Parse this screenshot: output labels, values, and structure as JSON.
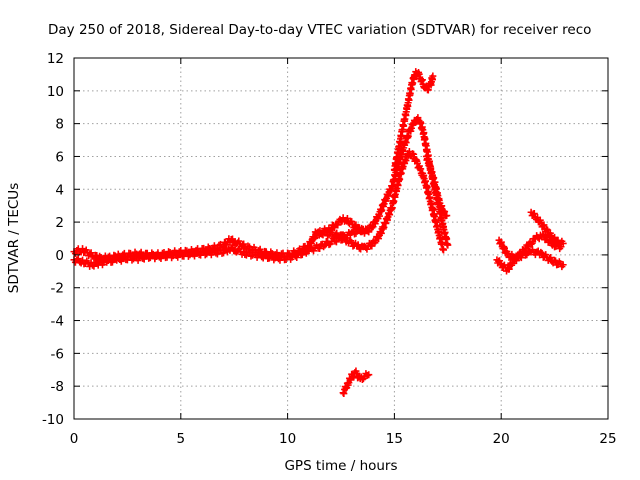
{
  "colors": {
    "series": "#ff0000",
    "grid": "#a0a0a0",
    "frame": "#000000"
  },
  "chart_data": {
    "type": "scatter",
    "title": "Day 250 of 2018, Sidereal Day-to-day VTEC variation (SDTVAR) for receiver reco",
    "xlabel": "GPS time / hours",
    "ylabel": "SDTVAR / TECUs",
    "xlim": [
      0,
      25
    ],
    "ylim": [
      -10,
      12
    ],
    "xticks": [
      0,
      5,
      10,
      15,
      20,
      25
    ],
    "yticks": [
      -10,
      -8,
      -6,
      -4,
      -2,
      0,
      2,
      4,
      6,
      8,
      10,
      12
    ],
    "grid": true,
    "marker": "plus",
    "series": [
      {
        "name": "SDTVAR",
        "segments": [
          {
            "x": [
              0.0,
              0.4,
              0.8,
              1.2,
              1.6,
              2.0,
              2.5,
              3.0,
              3.5,
              4.0,
              4.5,
              5.0,
              5.5,
              6.0,
              6.5,
              7.0,
              7.3,
              7.6,
              8.0,
              8.5,
              9.0,
              9.5,
              10.0,
              10.5,
              11.0,
              11.5,
              12.0,
              12.5,
              12.8,
              13.0,
              13.3,
              13.6,
              14.0,
              14.3,
              14.6,
              14.9,
              15.1,
              15.3,
              15.5,
              15.7,
              15.9,
              16.05,
              16.2,
              16.35,
              16.5,
              16.7,
              16.9,
              17.1,
              17.3
            ],
            "y": [
              -0.3,
              -0.4,
              -0.6,
              -0.5,
              -0.4,
              -0.3,
              -0.2,
              -0.2,
              -0.1,
              -0.1,
              -0.05,
              0.0,
              0.05,
              0.1,
              0.15,
              0.2,
              0.4,
              0.3,
              0.1,
              0.0,
              -0.1,
              -0.2,
              -0.2,
              0.0,
              0.3,
              0.5,
              0.8,
              1.0,
              0.9,
              0.7,
              0.5,
              0.4,
              0.7,
              1.2,
              2.0,
              3.0,
              4.0,
              5.0,
              5.8,
              6.2,
              6.0,
              5.6,
              5.2,
              4.8,
              4.2,
              3.2,
              2.2,
              1.2,
              0.3
            ]
          },
          {
            "x": [
              0.0,
              0.4,
              0.8,
              1.2,
              1.6,
              2.0,
              2.5,
              3.0,
              3.5,
              4.0,
              4.5,
              5.0,
              5.5,
              6.0,
              6.5,
              7.0,
              7.3,
              7.6,
              8.0,
              8.5,
              9.0,
              9.5,
              10.0,
              10.5,
              11.0,
              11.3,
              11.6,
              12.0,
              12.3,
              12.6,
              12.8,
              13.0,
              13.3,
              13.6,
              14.0,
              14.3,
              14.6,
              14.9,
              15.1,
              15.3,
              15.5,
              15.7,
              15.9,
              16.05,
              16.2,
              16.35,
              16.5,
              16.7,
              16.9,
              17.1,
              17.3,
              17.5
            ],
            "y": [
              0.2,
              0.3,
              0.0,
              -0.2,
              -0.2,
              -0.1,
              0.0,
              0.05,
              0.0,
              0.0,
              0.1,
              0.15,
              0.2,
              0.3,
              0.4,
              0.6,
              0.9,
              0.8,
              0.5,
              0.3,
              0.1,
              0.0,
              0.0,
              0.2,
              0.6,
              1.2,
              1.4,
              1.6,
              1.9,
              2.2,
              2.1,
              1.9,
              1.6,
              1.4,
              1.8,
              2.5,
              3.4,
              4.2,
              5.2,
              6.0,
              6.8,
              7.5,
              8.0,
              8.3,
              8.1,
              7.5,
              6.5,
              5.2,
              4.0,
              2.8,
              1.6,
              0.6
            ]
          },
          {
            "x": [
              15.0,
              15.2,
              15.4,
              15.6,
              15.8,
              15.95,
              16.1,
              16.25,
              16.4,
              16.55,
              16.7,
              16.8
            ],
            "y": [
              5.2,
              6.5,
              7.8,
              9.0,
              10.3,
              11.0,
              11.1,
              10.7,
              10.3,
              10.1,
              10.4,
              10.9
            ]
          },
          {
            "x": [
              16.5,
              16.7,
              16.9,
              17.1,
              17.3,
              17.45
            ],
            "y": [
              6.0,
              5.2,
              4.3,
              3.2,
              2.6,
              2.4
            ]
          },
          {
            "x": [
              11.3,
              11.8,
              12.3,
              12.6,
              13.0,
              13.4,
              13.8
            ],
            "y": [
              1.4,
              1.3,
              1.2,
              1.1,
              1.3,
              1.5,
              1.4
            ]
          },
          {
            "x": [
              12.6,
              12.8,
              13.0,
              13.2,
              13.4,
              13.6,
              13.8
            ],
            "y": [
              -8.4,
              -7.9,
              -7.4,
              -7.2,
              -7.6,
              -7.4,
              -7.3
            ]
          },
          {
            "x": [
              19.8,
              20.0,
              20.3,
              20.6,
              21.0,
              21.4,
              21.8,
              22.2,
              22.6,
              22.9
            ],
            "y": [
              -0.3,
              -0.6,
              -0.9,
              -0.3,
              0.0,
              0.2,
              0.1,
              -0.2,
              -0.5,
              -0.6
            ]
          },
          {
            "x": [
              19.9,
              20.3,
              20.7,
              21.0,
              21.3,
              21.6,
              21.9,
              22.2,
              22.5,
              22.8
            ],
            "y": [
              0.9,
              0.0,
              -0.2,
              0.2,
              0.6,
              1.0,
              1.2,
              0.9,
              0.6,
              0.5
            ]
          },
          {
            "x": [
              21.4,
              21.7,
              22.0,
              22.3,
              22.6,
              22.9
            ],
            "y": [
              2.6,
              2.2,
              1.7,
              1.2,
              0.8,
              0.7
            ]
          }
        ]
      }
    ]
  }
}
